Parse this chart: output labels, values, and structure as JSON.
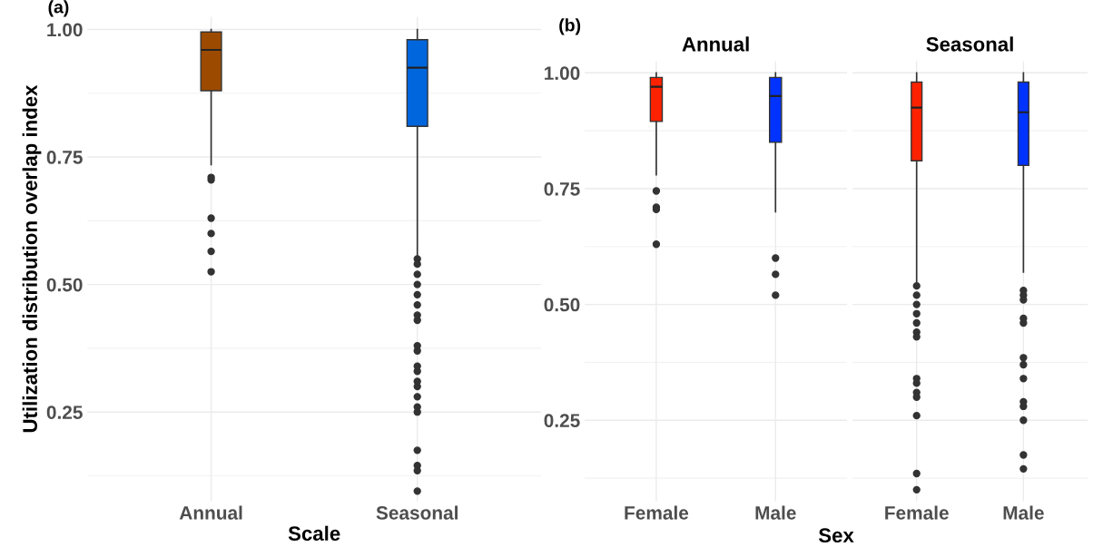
{
  "chart_data": [
    {
      "type": "box",
      "categories": [
        "Annual",
        "Seasonal"
      ],
      "xlabel": "Scale",
      "ylabel": "Utilization distribution overlap index",
      "annotations": [
        "(a)"
      ],
      "ylim": [
        0.075,
        1.025
      ],
      "yticks": [
        {
          "value": 0.25,
          "label": "0.25"
        },
        {
          "value": 0.5,
          "label": "0.50"
        },
        {
          "value": 0.75,
          "label": "0.75"
        },
        {
          "value": 1.0,
          "label": "1.00"
        }
      ],
      "grid": true,
      "colors": [
        "#9c4a00",
        "#0066dd"
      ],
      "boxes": [
        {
          "low": 0.735,
          "q1": 0.88,
          "median": 0.96,
          "q3": 0.995,
          "high": 1.0,
          "outliers": [
            0.71,
            0.705,
            0.63,
            0.6,
            0.565,
            0.525
          ]
        },
        {
          "low": 0.555,
          "q1": 0.81,
          "median": 0.925,
          "q3": 0.98,
          "high": 1.0,
          "outliers": [
            0.55,
            0.54,
            0.52,
            0.5,
            0.48,
            0.46,
            0.44,
            0.43,
            0.38,
            0.37,
            0.34,
            0.33,
            0.31,
            0.3,
            0.28,
            0.26,
            0.25,
            0.175,
            0.145,
            0.135,
            0.095
          ]
        }
      ]
    },
    {
      "type": "box",
      "title": "Annual",
      "categories": [
        "Female",
        "Male"
      ],
      "annotations": [
        "(b)"
      ],
      "ylim": [
        0.075,
        1.025
      ],
      "yticks": [
        {
          "value": 0.25,
          "label": "0.25"
        },
        {
          "value": 0.5,
          "label": "0.50"
        },
        {
          "value": 0.75,
          "label": "0.75"
        },
        {
          "value": 1.0,
          "label": "1.00"
        }
      ],
      "grid": true,
      "colors": [
        "#ff2200",
        "#0033ff"
      ],
      "boxes": [
        {
          "low": 0.78,
          "q1": 0.895,
          "median": 0.97,
          "q3": 0.99,
          "high": 1.0,
          "outliers": [
            0.745,
            0.71,
            0.705,
            0.63
          ]
        },
        {
          "low": 0.7,
          "q1": 0.85,
          "median": 0.95,
          "q3": 0.99,
          "high": 1.0,
          "outliers": [
            0.6,
            0.565,
            0.52
          ]
        }
      ]
    },
    {
      "type": "box",
      "title": "Seasonal",
      "categories": [
        "Female",
        "Male"
      ],
      "xlabel": "Sex",
      "tick_labels": "x",
      "ylim": [
        0.075,
        1.025
      ],
      "yticks": [
        {
          "value": 0.25,
          "label": null
        },
        {
          "value": 0.5,
          "label": null
        },
        {
          "value": 0.75,
          "label": null
        },
        {
          "value": 1.0,
          "label": null
        }
      ],
      "grid": true,
      "colors": [
        "#ff2200",
        "#0033ff"
      ],
      "boxes": [
        {
          "low": 0.55,
          "q1": 0.81,
          "median": 0.925,
          "q3": 0.98,
          "high": 1.0,
          "outliers": [
            0.54,
            0.52,
            0.5,
            0.48,
            0.46,
            0.44,
            0.43,
            0.34,
            0.33,
            0.31,
            0.3,
            0.26,
            0.135,
            0.1
          ]
        },
        {
          "low": 0.57,
          "q1": 0.8,
          "median": 0.915,
          "q3": 0.98,
          "high": 1.0,
          "outliers": [
            0.53,
            0.52,
            0.51,
            0.47,
            0.46,
            0.385,
            0.37,
            0.34,
            0.29,
            0.28,
            0.25,
            0.175,
            0.145
          ]
        }
      ]
    }
  ]
}
